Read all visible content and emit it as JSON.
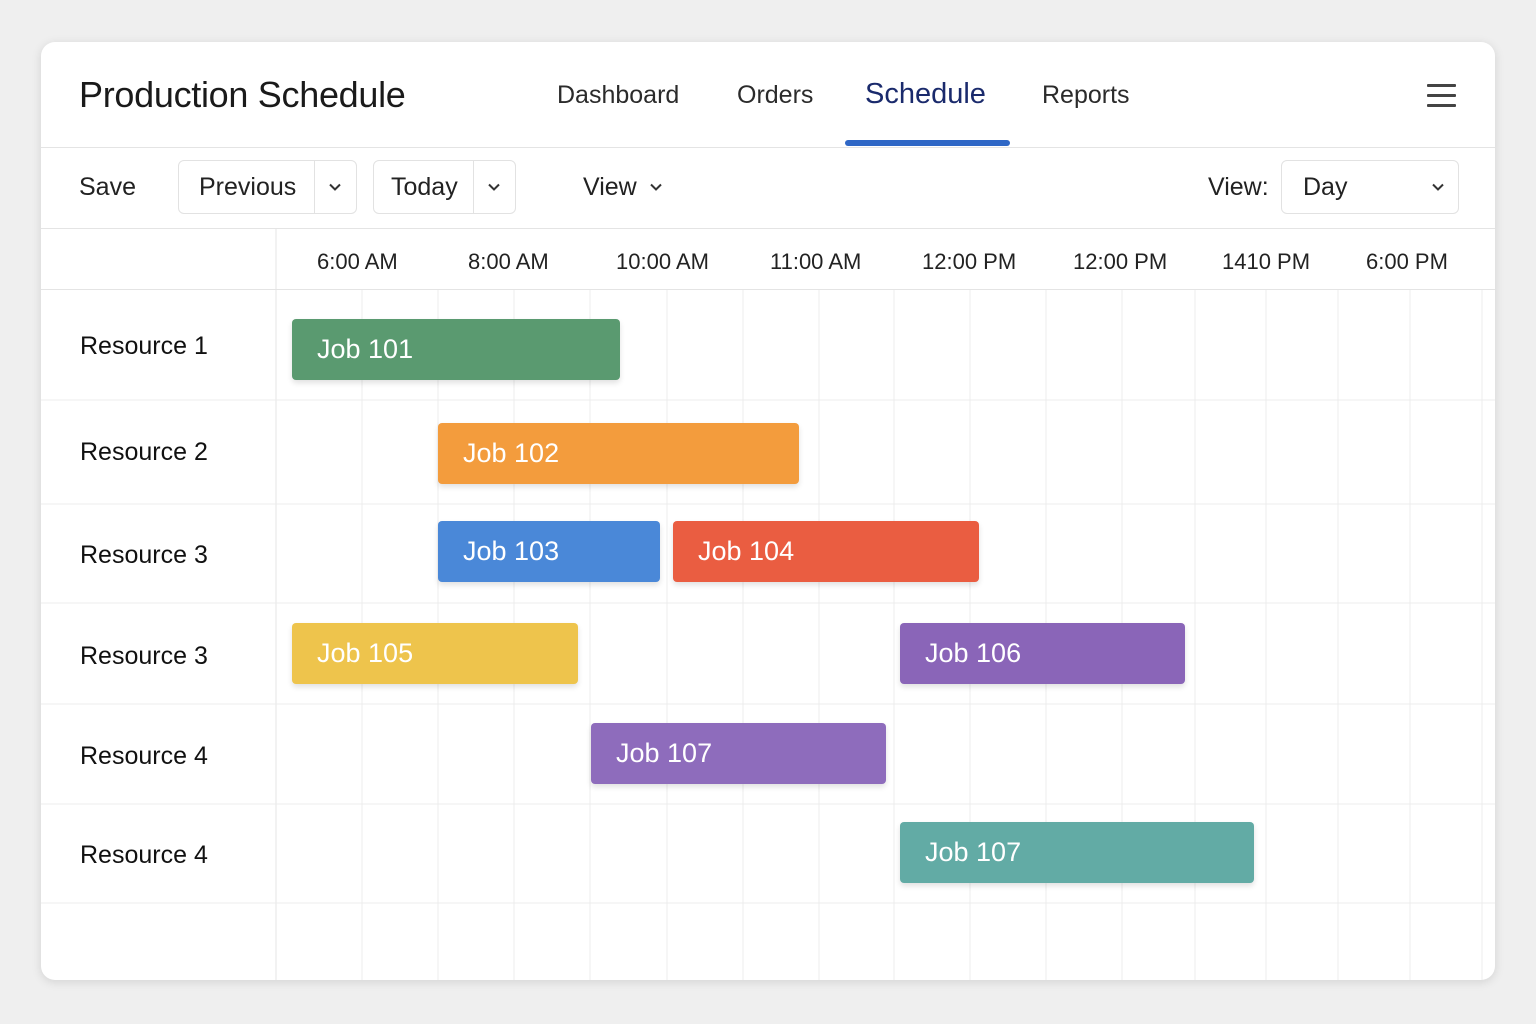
{
  "header": {
    "title": "Production Schedule",
    "tabs": [
      {
        "label": "Dashboard"
      },
      {
        "label": "Orders"
      },
      {
        "label": "Schedule",
        "active": true
      },
      {
        "label": "Reports"
      }
    ],
    "menu_icon": "hamburger-menu-icon",
    "accent_color": "#2f67c6"
  },
  "toolbar": {
    "save_label": "Save",
    "previous_label": "Previous",
    "today_label": "Today",
    "view_menu_label": "View",
    "view_select_label": "View:",
    "view_select_value": "Day"
  },
  "timeline": {
    "times": [
      "6:00 AM",
      "8:00 AM",
      "10:00 AM",
      "11:00 AM",
      "12:00 PM",
      "12:00 PM",
      "1410 PM",
      "6:00 PM"
    ]
  },
  "rows": [
    {
      "label": "Resource 1",
      "jobs": [
        {
          "label": "Job 101",
          "color": "#5a9a70"
        }
      ]
    },
    {
      "label": "Resource 2",
      "jobs": [
        {
          "label": "Job 102",
          "color": "#f39c3d"
        }
      ]
    },
    {
      "label": "Resource 3",
      "jobs": [
        {
          "label": "Job 103",
          "color": "#4a88d8"
        },
        {
          "label": "Job 104",
          "color": "#ea5d41"
        }
      ]
    },
    {
      "label": "Resource 3",
      "jobs": [
        {
          "label": "Job 105",
          "color": "#eec44c"
        },
        {
          "label": "Job 106",
          "color": "#8a65b8"
        }
      ]
    },
    {
      "label": "Resource 4",
      "jobs": [
        {
          "label": "Job 107",
          "color": "#8e6cbc"
        }
      ]
    },
    {
      "label": "Resource 4",
      "jobs": [
        {
          "label": "Job 107",
          "color": "#62aba5"
        }
      ]
    }
  ]
}
